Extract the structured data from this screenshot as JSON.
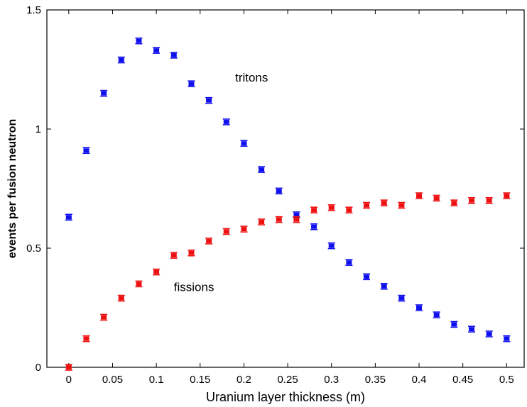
{
  "chart_data": {
    "type": "scatter",
    "xlabel": "Uranium layer thickness (m)",
    "ylabel": "events per fusion neutron",
    "xlim": [
      -0.025,
      0.52
    ],
    "ylim": [
      0,
      1.5
    ],
    "xticks": [
      0,
      0.05,
      0.1,
      0.15,
      0.2,
      0.25,
      0.3,
      0.35,
      0.4,
      0.45,
      0.5
    ],
    "xtick_labels": [
      "0",
      "0.05",
      "0.1",
      "0.15",
      "0.2",
      "0.25",
      "0.3",
      "0.35",
      "0.4",
      "0.45",
      "0.5"
    ],
    "yticks": [
      0,
      0.5,
      1,
      1.5
    ],
    "ytick_labels": [
      "0",
      "0.5",
      "1",
      "1.5"
    ],
    "grid": false,
    "x": [
      0,
      0.02,
      0.04,
      0.06,
      0.08,
      0.1,
      0.12,
      0.14,
      0.16,
      0.18,
      0.2,
      0.22,
      0.24,
      0.26,
      0.28,
      0.3,
      0.32,
      0.34,
      0.36,
      0.38,
      0.4,
      0.42,
      0.44,
      0.46,
      0.48,
      0.5
    ],
    "series": [
      {
        "name": "tritons",
        "color": "#1010ee",
        "values": [
          0.63,
          0.91,
          1.15,
          1.29,
          1.37,
          1.33,
          1.31,
          1.19,
          1.12,
          1.03,
          0.94,
          0.83,
          0.74,
          0.64,
          0.59,
          0.51,
          0.44,
          0.38,
          0.34,
          0.29,
          0.25,
          0.22,
          0.18,
          0.16,
          0.14,
          0.12
        ]
      },
      {
        "name": "fissions",
        "color": "#ee1010",
        "values": [
          0.0,
          0.12,
          0.21,
          0.29,
          0.35,
          0.4,
          0.47,
          0.48,
          0.53,
          0.57,
          0.58,
          0.61,
          0.62,
          0.62,
          0.66,
          0.67,
          0.66,
          0.68,
          0.69,
          0.68,
          0.72,
          0.71,
          0.69,
          0.7,
          0.7,
          0.72
        ]
      }
    ],
    "annotations": [
      {
        "text": "tritons",
        "x": 0.19,
        "y": 1.2
      },
      {
        "text": "fissions",
        "x": 0.12,
        "y": 0.32
      }
    ]
  }
}
